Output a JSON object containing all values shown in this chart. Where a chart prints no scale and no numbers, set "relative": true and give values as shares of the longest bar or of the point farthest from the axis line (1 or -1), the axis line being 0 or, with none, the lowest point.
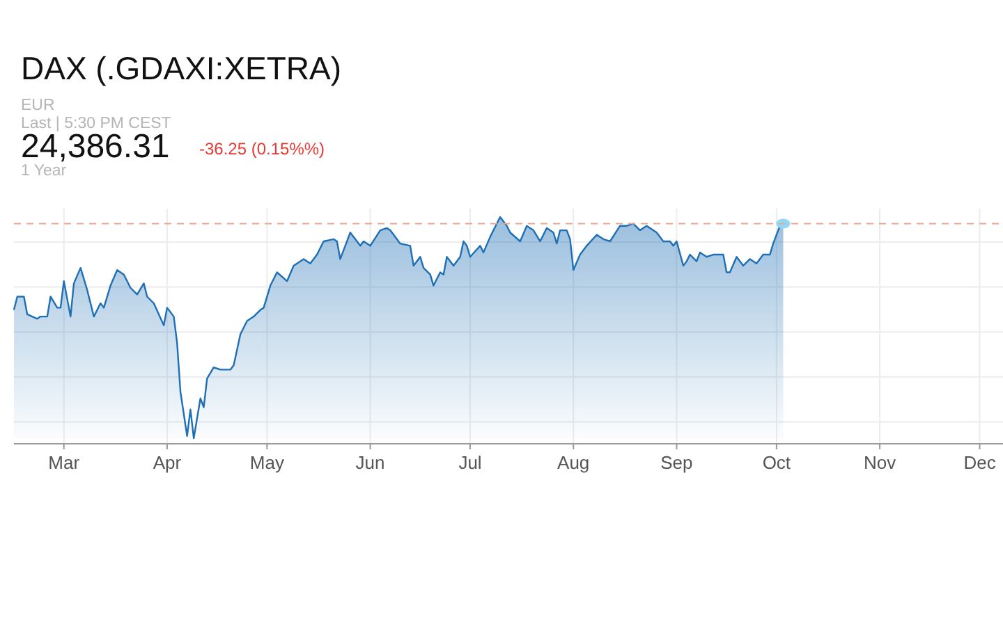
{
  "chart_data": {
    "type": "area",
    "title": "DAX (.GDAXI:XETRA)",
    "subtitle": "EUR",
    "annotations": [
      "Last | 5:30 PM CEST",
      "24,386.31",
      "-36.25 (0.15%%)",
      "1 Year"
    ],
    "relative": true,
    "grid": true,
    "xlim": [
      "--02-14",
      "--12-08"
    ],
    "xticks": [
      {
        "value": "--03-01",
        "label": "Mar"
      },
      {
        "value": "--04-01",
        "label": "Apr"
      },
      {
        "value": "--05-01",
        "label": "May"
      },
      {
        "value": "--06-01",
        "label": "Jun"
      },
      {
        "value": "--07-01",
        "label": "Jul"
      },
      {
        "value": "--08-01",
        "label": "Aug"
      },
      {
        "value": "--09-01",
        "label": "Sep"
      },
      {
        "value": "--10-01",
        "label": "Oct"
      },
      {
        "value": "--11-01",
        "label": "Nov"
      },
      {
        "value": "--12-01",
        "label": "Dec"
      }
    ],
    "ref_lines": [
      {
        "axis": "y",
        "value": 0.97,
        "color": "#e8a58f",
        "line_style": "dashed"
      }
    ],
    "x": [
      "--02-14",
      "--02-15",
      "--02-17",
      "--02-18",
      "--02-21",
      "--02-22",
      "--02-24",
      "--02-25",
      "--02-27",
      "--02-28",
      "--03-01",
      "--03-03",
      "--03-04",
      "--03-06",
      "--03-08",
      "--03-10",
      "--03-12",
      "--03-13",
      "--03-15",
      "--03-17",
      "--03-19",
      "--03-21",
      "--03-23",
      "--03-25",
      "--03-26",
      "--03-28",
      "--03-31",
      "--04-01",
      "--04-03",
      "--04-04",
      "--04-05",
      "--04-07",
      "--04-08",
      "--04-09",
      "--04-11",
      "--04-12",
      "--04-13",
      "--04-15",
      "--04-17",
      "--04-20",
      "--04-21",
      "--04-23",
      "--04-25",
      "--04-27",
      "--04-29",
      "--04-30",
      "--05-02",
      "--05-04",
      "--05-07",
      "--05-09",
      "--05-12",
      "--05-14",
      "--05-16",
      "--05-18",
      "--05-21",
      "--05-22",
      "--05-23",
      "--05-26",
      "--05-29",
      "--05-30",
      "--06-01",
      "--06-04",
      "--06-06",
      "--06-07",
      "--06-10",
      "--06-13",
      "--06-14",
      "--06-16",
      "--06-17",
      "--06-19",
      "--06-20",
      "--06-22",
      "--06-23",
      "--06-24",
      "--06-26",
      "--06-28",
      "--06-29",
      "--06-30",
      "--07-01",
      "--07-04",
      "--07-05",
      "--07-07",
      "--07-08",
      "--07-10",
      "--07-12",
      "--07-13",
      "--07-16",
      "--07-18",
      "--07-20",
      "--07-22",
      "--07-24",
      "--07-26",
      "--07-27",
      "--07-28",
      "--07-30",
      "--07-31",
      "--08-01",
      "--08-03",
      "--08-05",
      "--08-08",
      "--08-10",
      "--08-12",
      "--08-15",
      "--08-17",
      "--08-19",
      "--08-21",
      "--08-23",
      "--08-26",
      "--08-28",
      "--08-30",
      "--08-31",
      "--09-01",
      "--09-03",
      "--09-04",
      "--09-05",
      "--09-07",
      "--09-08",
      "--09-10",
      "--09-12",
      "--09-15",
      "--09-16",
      "--09-17",
      "--09-19",
      "--09-21",
      "--09-23",
      "--09-25",
      "--09-27",
      "--09-29",
      "--09-30",
      "--10-02",
      "--10-03"
    ],
    "series": [
      {
        "color": "#1f6fb5",
        "values": [
          0.58,
          0.64,
          0.64,
          0.56,
          0.54,
          0.55,
          0.55,
          0.64,
          0.59,
          0.59,
          0.71,
          0.55,
          0.7,
          0.77,
          0.67,
          0.55,
          0.61,
          0.59,
          0.69,
          0.76,
          0.74,
          0.68,
          0.65,
          0.7,
          0.64,
          0.61,
          0.51,
          0.59,
          0.55,
          0.43,
          0.21,
          0.01,
          0.13,
          0,
          0.18,
          0.14,
          0.27,
          0.32,
          0.31,
          0.31,
          0.33,
          0.47,
          0.53,
          0.55,
          0.58,
          0.59,
          0.69,
          0.75,
          0.71,
          0.78,
          0.81,
          0.79,
          0.83,
          0.89,
          0.9,
          0.89,
          0.81,
          0.93,
          0.87,
          0.89,
          0.87,
          0.94,
          0.95,
          0.94,
          0.88,
          0.87,
          0.78,
          0.82,
          0.77,
          0.74,
          0.69,
          0.75,
          0.74,
          0.82,
          0.78,
          0.82,
          0.89,
          0.87,
          0.82,
          0.87,
          0.84,
          0.91,
          0.94,
          1,
          0.96,
          0.93,
          0.89,
          0.96,
          0.94,
          0.89,
          0.95,
          0.93,
          0.88,
          0.94,
          0.94,
          0.9,
          0.76,
          0.83,
          0.87,
          0.92,
          0.9,
          0.89,
          0.96,
          0.96,
          0.97,
          0.94,
          0.96,
          0.93,
          0.89,
          0.89,
          0.87,
          0.89,
          0.78,
          0.8,
          0.83,
          0.8,
          0.84,
          0.82,
          0.83,
          0.83,
          0.75,
          0.75,
          0.82,
          0.78,
          0.81,
          0.79,
          0.83,
          0.83,
          0.88,
          0.96,
          0.97
        ]
      }
    ]
  }
}
